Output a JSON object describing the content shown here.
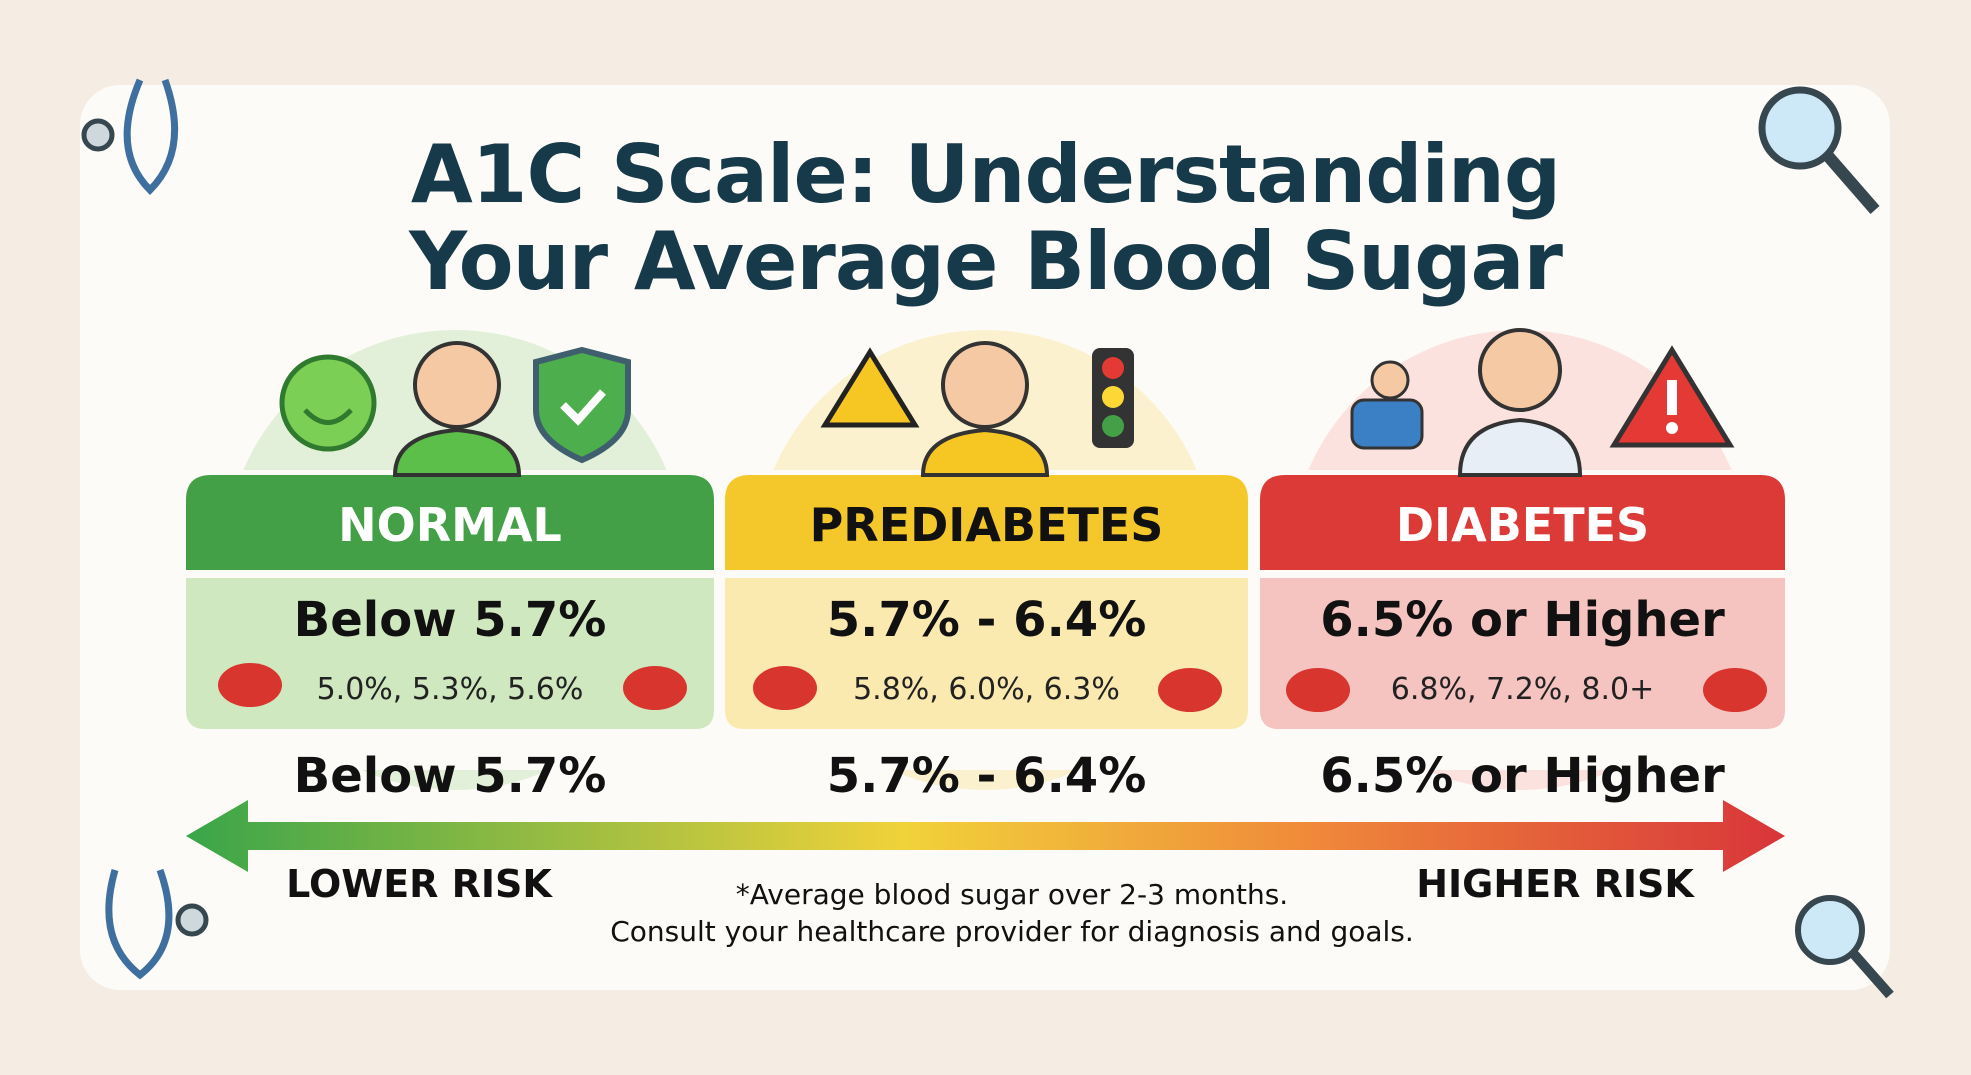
{
  "title": [
    "A1C Scale: Understanding",
    "Your Average Blood Sugar"
  ],
  "categories": [
    {
      "name": "NORMAL",
      "range": "Below 5.7%",
      "examples": "5.0%, 5.3%, 5.6%",
      "scale_label": "Below 5.7%"
    },
    {
      "name": "PREDIABETES",
      "range": "5.7% - 6.4%",
      "examples": "5.8%, 6.0%, 6.3%",
      "scale_label": "5.7% - 6.4%"
    },
    {
      "name": "DIABETES",
      "range": "6.5% or Higher",
      "examples": "6.8%, 7.2%, 8.0+",
      "scale_label": "6.5% or Higher"
    }
  ],
  "scale": {
    "low": "LOWER RISK",
    "high": "HIGHER RISK"
  },
  "footnote": [
    "*Average blood sugar over 2-3 months.",
    "Consult your healthcare provider for diagnosis and goals."
  ]
}
